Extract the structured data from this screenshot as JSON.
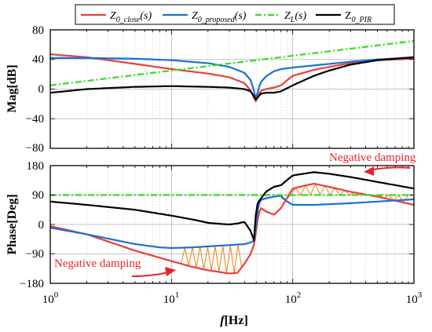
{
  "chart_data": [
    {
      "type": "line",
      "xscale": "log",
      "xlim": [
        1,
        1000
      ],
      "ylim": [
        -80,
        80
      ],
      "ylabel": "Mag[dB]",
      "yticks": [
        "80",
        "40",
        "0",
        "−40",
        "−80"
      ],
      "grid": true,
      "legend": {
        "placement": "top",
        "entries": [
          {
            "base": "Z",
            "sub": "0_close",
            "tail": "(s)"
          },
          {
            "base": "Z",
            "sub": "0_proposed",
            "tail": "(s)"
          },
          {
            "base": "Z",
            "sub": "L",
            "tail": "(s)"
          },
          {
            "base": "Z",
            "sub": "0_PIR",
            "tail": ""
          }
        ]
      },
      "series": [
        {
          "color": "#e8403a",
          "style": "solid",
          "x": [
            1,
            2,
            5,
            10,
            20,
            30,
            40,
            45,
            48,
            50,
            52,
            55,
            60,
            70,
            80,
            100,
            150,
            200,
            300,
            500,
            1000
          ],
          "y": [
            47,
            43,
            34,
            27,
            21,
            16,
            8,
            -2,
            -12,
            -18,
            -8,
            -2,
            0,
            2,
            5,
            18,
            26,
            30,
            35,
            39,
            41
          ]
        },
        {
          "color": "#1a6fd6",
          "style": "solid",
          "x": [
            1,
            2,
            5,
            10,
            20,
            30,
            40,
            45,
            48,
            50,
            52,
            55,
            60,
            70,
            80,
            100,
            150,
            200,
            300,
            500,
            1000
          ],
          "y": [
            42,
            42,
            41,
            39,
            35,
            30,
            22,
            12,
            -3,
            -15,
            0,
            10,
            17,
            24,
            27,
            29,
            32,
            34,
            37,
            40,
            43
          ]
        },
        {
          "color": "#33dd22",
          "style": "dashdot",
          "x": [
            1,
            10,
            100,
            1000
          ],
          "y": [
            5,
            25,
            45,
            65
          ]
        },
        {
          "color": "#000000",
          "style": "solid",
          "x": [
            1,
            2,
            5,
            10,
            20,
            30,
            40,
            45,
            48,
            50,
            52,
            55,
            60,
            70,
            80,
            100,
            150,
            200,
            300,
            500,
            1000
          ],
          "y": [
            -5,
            0,
            3,
            4,
            3,
            2,
            0,
            -3,
            -10,
            -15,
            -10,
            -6,
            -5,
            -5,
            -3,
            5,
            18,
            25,
            33,
            39,
            43
          ]
        }
      ]
    },
    {
      "type": "line",
      "xscale": "log",
      "xlim": [
        1,
        1000
      ],
      "ylim": [
        -180,
        180
      ],
      "xlabel": "f[Hz]",
      "ylabel": "Phase[Deg]",
      "yticks": [
        "180",
        "90",
        "0",
        "−90",
        "−180"
      ],
      "xticks": [
        "10",
        "10",
        "10",
        "10"
      ],
      "xtick_exponents": [
        "0",
        "1",
        "2",
        "3"
      ],
      "grid": true,
      "series": [
        {
          "color": "#e8403a",
          "style": "solid",
          "x": [
            1,
            2,
            5,
            10,
            15,
            20,
            30,
            35,
            40,
            45,
            48,
            50,
            52,
            55,
            60,
            70,
            80,
            100,
            150,
            200,
            300,
            500,
            1000
          ],
          "y": [
            -5,
            -30,
            -80,
            -112,
            -130,
            -140,
            -150,
            -148,
            -120,
            -90,
            -60,
            -20,
            30,
            50,
            40,
            30,
            50,
            110,
            125,
            115,
            100,
            85,
            60
          ]
        },
        {
          "color": "#1a6fd6",
          "style": "solid",
          "x": [
            1,
            2,
            5,
            8,
            10,
            15,
            20,
            30,
            40,
            45,
            48,
            50,
            52,
            55,
            60,
            70,
            80,
            82,
            85,
            90,
            100,
            150,
            200,
            300,
            500,
            1000
          ],
          "y": [
            -10,
            -30,
            -60,
            -70,
            -72,
            -70,
            -67,
            -63,
            -60,
            -55,
            -50,
            0,
            60,
            75,
            80,
            85,
            88,
            80,
            78,
            70,
            60,
            60,
            62,
            65,
            70,
            77
          ]
        },
        {
          "color": "#33dd22",
          "style": "dashdot",
          "x": [
            1,
            1000
          ],
          "y": [
            90,
            90
          ]
        },
        {
          "color": "#000000",
          "style": "solid",
          "x": [
            1,
            2,
            5,
            10,
            15,
            20,
            25,
            30,
            35,
            40,
            45,
            48,
            50,
            52,
            55,
            60,
            70,
            80,
            100,
            150,
            200,
            300,
            500,
            1000
          ],
          "y": [
            70,
            60,
            45,
            27,
            15,
            5,
            2,
            0,
            3,
            8,
            -20,
            -50,
            50,
            70,
            80,
            100,
            115,
            120,
            150,
            160,
            155,
            145,
            130,
            110
          ]
        }
      ],
      "annotations": [
        {
          "text": "Negative damping",
          "placement": "bottom-left"
        },
        {
          "text": "Negative damping",
          "placement": "top-right"
        }
      ],
      "hatched_regions": [
        {
          "color": "#f08a1c",
          "between": "red and blue phase curves",
          "x_range": [
            12,
            38
          ]
        },
        {
          "color": "#f08a1c",
          "between": "red phase curve and 90 deg line",
          "x_range": [
            80,
            900
          ]
        }
      ]
    }
  ]
}
